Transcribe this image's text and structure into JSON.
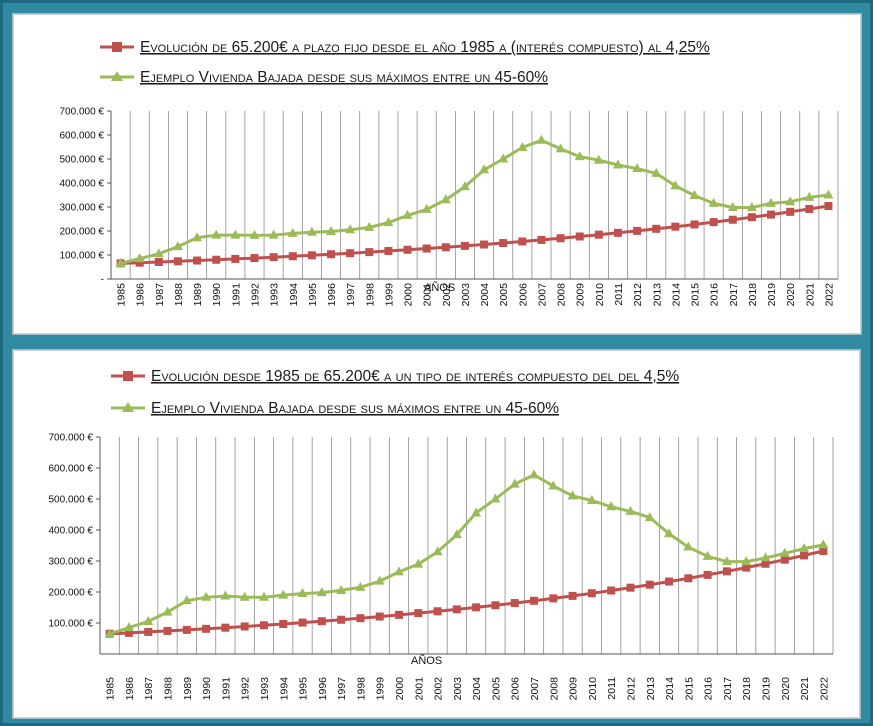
{
  "colors": {
    "background": "#2f8aa2",
    "deposit_series": "#c0504d",
    "housing_series": "#9bbb59",
    "grid": "#8c8c8c"
  },
  "chart_data": [
    {
      "type": "line",
      "xlabel": "AÑOS",
      "ylabel": "",
      "ylim": [
        0,
        700000
      ],
      "y_ticks": [
        "700.000 €",
        "600.000 €",
        "500.000 €",
        "400.000 €",
        "300.000 €",
        "200.000 €",
        "100.000 €",
        "-"
      ],
      "grid": "vertical",
      "legend_position": "top",
      "x": [
        "1985",
        "1986",
        "1987",
        "1988",
        "1989",
        "1990",
        "1991",
        "1992",
        "1993",
        "1994",
        "1995",
        "1996",
        "1997",
        "1998",
        "1999",
        "2000",
        "2001",
        "2002",
        "2003",
        "2004",
        "2005",
        "2006",
        "2007",
        "2008",
        "2009",
        "2010",
        "2011",
        "2012",
        "2013",
        "2014",
        "2015",
        "2016",
        "2017",
        "2018",
        "2019",
        "2020",
        "2021",
        "2022"
      ],
      "series": [
        {
          "name": "Evolución de 65.200€ a plazo fijo desde el año 1985 a (interés compuesto) al 4,25%",
          "marker": "square",
          "values": [
            65200,
            67971,
            70860,
            73871,
            77011,
            80284,
            83696,
            87253,
            90961,
            94827,
            98857,
            103059,
            107439,
            112005,
            116765,
            121728,
            126901,
            132294,
            137917,
            143778,
            149889,
            156259,
            162900,
            169823,
            177041,
            184565,
            192409,
            200586,
            209111,
            217998,
            227263,
            236922,
            246991,
            257488,
            268431,
            279840,
            291733,
            304132
          ]
        },
        {
          "name": "Ejemplo Vivienda Bajada desde sus máximos entre un 45-60%",
          "marker": "triangle",
          "values": [
            65000,
            85000,
            105000,
            135000,
            172000,
            183000,
            183000,
            182000,
            183000,
            190000,
            195000,
            198000,
            205000,
            215000,
            235000,
            265000,
            290000,
            330000,
            385000,
            455000,
            500000,
            548000,
            578000,
            542000,
            510000,
            495000,
            475000,
            460000,
            440000,
            388000,
            348000,
            315000,
            298000,
            298000,
            315000,
            322000,
            340000,
            350000
          ]
        }
      ]
    },
    {
      "type": "line",
      "xlabel": "AÑOS",
      "ylabel": "",
      "ylim": [
        0,
        700000
      ],
      "y_ticks": [
        "700.000 €",
        "600.000 €",
        "500.000 €",
        "400.000 €",
        "300.000 €",
        "200.000 €",
        "100.000 €"
      ],
      "grid": "vertical",
      "legend_position": "top",
      "x": [
        "1985",
        "1986",
        "1987",
        "1988",
        "1989",
        "1990",
        "1991",
        "1992",
        "1993",
        "1994",
        "1995",
        "1996",
        "1997",
        "1998",
        "1999",
        "2000",
        "2001",
        "2002",
        "2003",
        "2004",
        "2005",
        "2006",
        "2007",
        "2008",
        "2009",
        "2010",
        "2011",
        "2012",
        "2013",
        "2014",
        "2015",
        "2016",
        "2017",
        "2018",
        "2019",
        "2020",
        "2021",
        "2022"
      ],
      "series": [
        {
          "name": "Evolución desde 1985 de  65.200€  a  un tipo de interés compuesto del  del 4,5%",
          "marker": "square",
          "values": [
            65200,
            68134,
            71200,
            74404,
            77752,
            81251,
            84907,
            88728,
            92721,
            96893,
            101253,
            105810,
            110571,
            115547,
            120746,
            126180,
            131858,
            137791,
            143992,
            150472,
            157243,
            164319,
            171713,
            179440,
            187515,
            195953,
            204771,
            213986,
            223615,
            233678,
            244194,
            255182,
            266666,
            278666,
            291205,
            304310,
            318004,
            332314
          ]
        },
        {
          "name": "Ejemplo Vivienda Bajada desde sus máximos entre un 45-60%",
          "marker": "triangle",
          "values": [
            65000,
            85000,
            105000,
            135000,
            172000,
            183000,
            187000,
            183000,
            183000,
            190000,
            195000,
            198000,
            205000,
            215000,
            235000,
            265000,
            290000,
            330000,
            385000,
            455000,
            500000,
            548000,
            578000,
            542000,
            510000,
            495000,
            475000,
            460000,
            440000,
            388000,
            345000,
            315000,
            298000,
            298000,
            310000,
            325000,
            340000,
            352000
          ]
        }
      ]
    }
  ]
}
